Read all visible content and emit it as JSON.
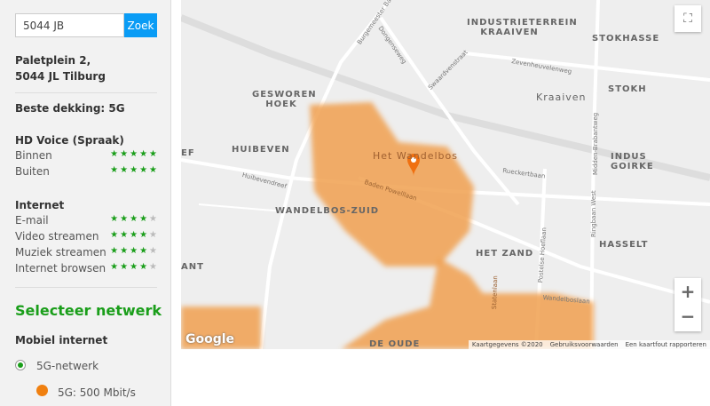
{
  "search": {
    "value": "5044 JB",
    "button": "Zoek"
  },
  "address": {
    "line1": "Paletplein 2,",
    "line2": "5044 JL Tilburg"
  },
  "best_coverage": "Beste dekking: 5G",
  "hd_voice": {
    "title": "HD Voice (Spraak)",
    "rows": [
      {
        "label": "Binnen",
        "rating": 5
      },
      {
        "label": "Buiten",
        "rating": 5
      }
    ]
  },
  "internet": {
    "title": "Internet",
    "rows": [
      {
        "label": "E-mail",
        "rating": 4
      },
      {
        "label": "Video streamen",
        "rating": 4
      },
      {
        "label": "Muziek streamen",
        "rating": 4
      },
      {
        "label": "Internet browsen",
        "rating": 4
      }
    ]
  },
  "select_network": "Selecteer netwerk",
  "mobile_internet": "Mobiel internet",
  "network_option": "5G-netwerk",
  "legend": {
    "label": "5G: 500 Mbit/s",
    "color": "#f08010"
  },
  "map": {
    "areas": [
      "INDUSTRIETERREIN KRAAIVEN",
      "STOKHASSE",
      "STOKH",
      "GESWOREN HOEK",
      "HUIBEVEN",
      "WANDELBOS-ZUID",
      "INDUS GOIRKE",
      "HASSELT",
      "HET ZAND",
      "DE OUDE",
      "ANT",
      "EF"
    ],
    "places": [
      "Het Wandelbos",
      "Kraaiven"
    ],
    "roads": [
      "Burgemeester Baron",
      "Dongenseweg",
      "Swaardvenstraat",
      "Zevenheuvelenweg",
      "Midden-Brabantweg",
      "Rueckertbaan",
      "Huibevendreef",
      "Baden Powelllaan",
      "Ringbaan West",
      "Postelse Hoeflaan",
      "Statenlaan",
      "Wandelboslaan"
    ],
    "logo": "Google",
    "footer": [
      "Kaartgegevens ©2020",
      "Gebruiksvoorwaarden",
      "Een kaartfout rapporteren"
    ],
    "coverage_color": "#f0a050",
    "marker_color": "#f07010"
  }
}
